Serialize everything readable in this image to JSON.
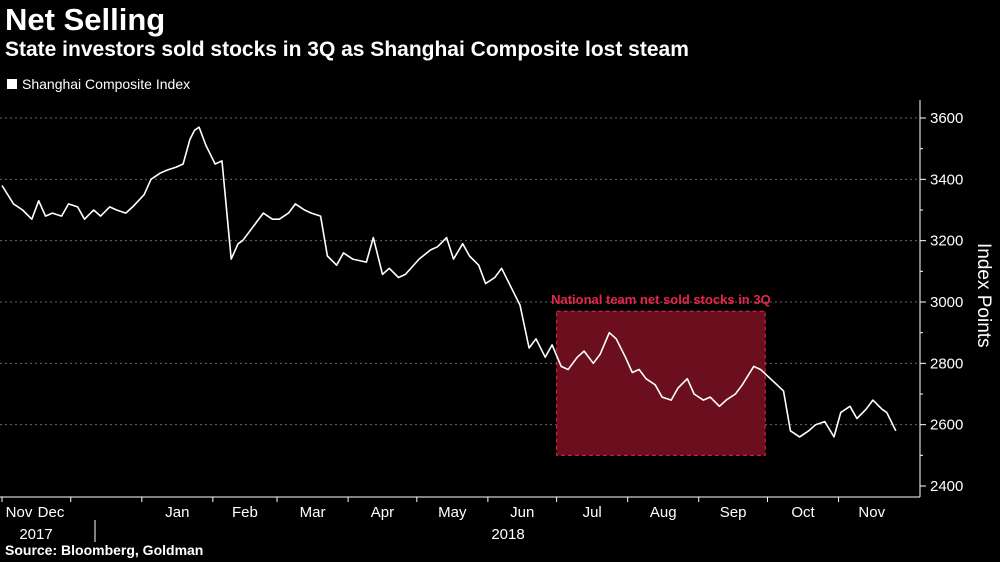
{
  "title": "Net Selling",
  "subtitle": "State investors sold stocks in 3Q as Shanghai Composite lost steam",
  "legend_label": "Shanghai Composite Index",
  "source": "Source: Bloomberg, Goldman",
  "colors": {
    "background": "#000000",
    "line": "#ffffff",
    "annotation_fill": "#6b0f1e",
    "annotation_border": "#e8244a"
  },
  "chart_data": {
    "type": "line",
    "title": "Net Selling",
    "subtitle": "State investors sold stocks in 3Q as Shanghai Composite lost steam",
    "ylabel": "Index Points",
    "ylim": [
      2400,
      3650
    ],
    "yticks": [
      2400,
      2600,
      2800,
      3000,
      3200,
      3400,
      3600
    ],
    "xlim": [
      "2017-11-01",
      "2018-11-30"
    ],
    "x_month_ticks": [
      {
        "label": "Nov",
        "date": "2017-11-01"
      },
      {
        "label": "Dec",
        "date": "2017-12-01"
      },
      {
        "label": "Jan",
        "date": "2018-01-01"
      },
      {
        "label": "Feb",
        "date": "2018-02-01"
      },
      {
        "label": "Mar",
        "date": "2018-03-01"
      },
      {
        "label": "Apr",
        "date": "2018-04-01"
      },
      {
        "label": "May",
        "date": "2018-05-01"
      },
      {
        "label": "Jun",
        "date": "2018-06-01"
      },
      {
        "label": "Jul",
        "date": "2018-07-01"
      },
      {
        "label": "Aug",
        "date": "2018-08-01"
      },
      {
        "label": "Sep",
        "date": "2018-09-01"
      },
      {
        "label": "Oct",
        "date": "2018-10-01"
      },
      {
        "label": "Nov",
        "date": "2018-11-01"
      }
    ],
    "year_labels": [
      {
        "label": "2017",
        "date": "2017-11-01"
      },
      {
        "label": "2018",
        "date": "2018-06-01"
      }
    ],
    "grid": "horizontal dashed",
    "legend_position": "top-left",
    "series": [
      {
        "name": "Shanghai Composite Index",
        "x": [
          "2017-11-01",
          "2017-11-06",
          "2017-11-10",
          "2017-11-14",
          "2017-11-17",
          "2017-11-20",
          "2017-11-23",
          "2017-11-27",
          "2017-11-30",
          "2017-12-04",
          "2017-12-07",
          "2017-12-11",
          "2017-12-14",
          "2017-12-18",
          "2017-12-21",
          "2017-12-25",
          "2017-12-28",
          "2018-01-02",
          "2018-01-05",
          "2018-01-09",
          "2018-01-12",
          "2018-01-16",
          "2018-01-19",
          "2018-01-22",
          "2018-01-24",
          "2018-01-26",
          "2018-01-29",
          "2018-01-31",
          "2018-02-02",
          "2018-02-05",
          "2018-02-07",
          "2018-02-09",
          "2018-02-12",
          "2018-02-14",
          "2018-02-23",
          "2018-02-27",
          "2018-03-02",
          "2018-03-06",
          "2018-03-09",
          "2018-03-13",
          "2018-03-16",
          "2018-03-20",
          "2018-03-23",
          "2018-03-27",
          "2018-03-30",
          "2018-04-03",
          "2018-04-09",
          "2018-04-12",
          "2018-04-16",
          "2018-04-19",
          "2018-04-23",
          "2018-04-26",
          "2018-05-02",
          "2018-05-07",
          "2018-05-10",
          "2018-05-14",
          "2018-05-17",
          "2018-05-21",
          "2018-05-24",
          "2018-05-28",
          "2018-05-31",
          "2018-06-04",
          "2018-06-07",
          "2018-06-11",
          "2018-06-15",
          "2018-06-19",
          "2018-06-22",
          "2018-06-26",
          "2018-06-29",
          "2018-07-03",
          "2018-07-06",
          "2018-07-10",
          "2018-07-13",
          "2018-07-17",
          "2018-07-20",
          "2018-07-24",
          "2018-07-27",
          "2018-07-31",
          "2018-08-03",
          "2018-08-06",
          "2018-08-09",
          "2018-08-13",
          "2018-08-16",
          "2018-08-20",
          "2018-08-23",
          "2018-08-27",
          "2018-08-30",
          "2018-09-03",
          "2018-09-06",
          "2018-09-10",
          "2018-09-13",
          "2018-09-17",
          "2018-09-20",
          "2018-09-25",
          "2018-09-28",
          "2018-10-08",
          "2018-10-11",
          "2018-10-15",
          "2018-10-19",
          "2018-10-22",
          "2018-10-26",
          "2018-10-30",
          "2018-11-02",
          "2018-11-06",
          "2018-11-09",
          "2018-11-13",
          "2018-11-16",
          "2018-11-20",
          "2018-11-22",
          "2018-11-26"
        ],
        "values": [
          3380,
          3320,
          3300,
          3270,
          3330,
          3280,
          3290,
          3280,
          3320,
          3310,
          3270,
          3300,
          3280,
          3310,
          3300,
          3290,
          3310,
          3350,
          3400,
          3420,
          3430,
          3440,
          3450,
          3530,
          3560,
          3570,
          3510,
          3480,
          3450,
          3460,
          3300,
          3140,
          3190,
          3200,
          3290,
          3270,
          3270,
          3290,
          3320,
          3300,
          3290,
          3280,
          3150,
          3120,
          3160,
          3140,
          3130,
          3210,
          3090,
          3110,
          3080,
          3090,
          3140,
          3170,
          3180,
          3210,
          3140,
          3190,
          3150,
          3120,
          3060,
          3080,
          3110,
          3050,
          2990,
          2850,
          2880,
          2820,
          2860,
          2790,
          2780,
          2820,
          2840,
          2800,
          2830,
          2900,
          2880,
          2820,
          2770,
          2780,
          2750,
          2730,
          2690,
          2680,
          2720,
          2750,
          2700,
          2680,
          2690,
          2660,
          2680,
          2700,
          2730,
          2790,
          2780,
          2710,
          2580,
          2560,
          2580,
          2600,
          2610,
          2560,
          2640,
          2660,
          2620,
          2650,
          2680,
          2650,
          2640,
          2580
        ]
      }
    ],
    "annotations": [
      {
        "type": "shaded_range",
        "label": "National team net sold stocks in 3Q",
        "x_start": "2018-07-01",
        "x_end": "2018-09-30",
        "y_start": 2500,
        "y_end": 2970
      }
    ]
  }
}
